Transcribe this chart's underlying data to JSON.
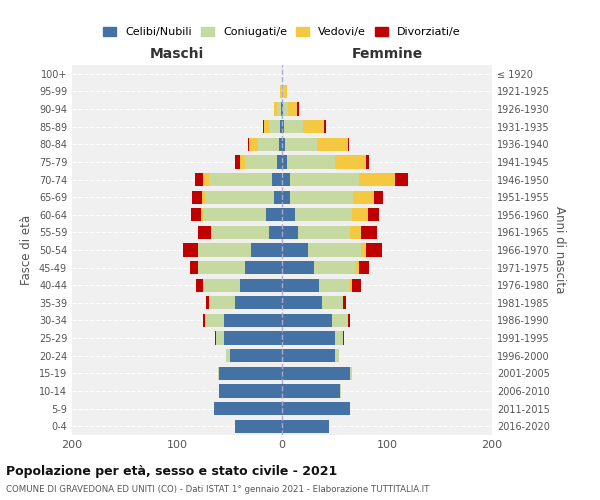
{
  "age_groups": [
    "0-4",
    "5-9",
    "10-14",
    "15-19",
    "20-24",
    "25-29",
    "30-34",
    "35-39",
    "40-44",
    "45-49",
    "50-54",
    "55-59",
    "60-64",
    "65-69",
    "70-74",
    "75-79",
    "80-84",
    "85-89",
    "90-94",
    "95-99",
    "100+"
  ],
  "birth_years": [
    "2016-2020",
    "2011-2015",
    "2006-2010",
    "2001-2005",
    "1996-2000",
    "1991-1995",
    "1986-1990",
    "1981-1985",
    "1976-1980",
    "1971-1975",
    "1966-1970",
    "1961-1965",
    "1956-1960",
    "1951-1955",
    "1946-1950",
    "1941-1945",
    "1936-1940",
    "1931-1935",
    "1926-1930",
    "1921-1925",
    "≤ 1920"
  ],
  "maschi": {
    "celibi": [
      45,
      65,
      60,
      60,
      50,
      55,
      55,
      45,
      40,
      35,
      30,
      12,
      15,
      8,
      10,
      5,
      3,
      2,
      1,
      0,
      0
    ],
    "coniugati": [
      0,
      0,
      0,
      1,
      3,
      8,
      18,
      25,
      35,
      45,
      50,
      55,
      60,
      65,
      60,
      30,
      20,
      10,
      4,
      1,
      0
    ],
    "vedovi": [
      0,
      0,
      0,
      0,
      0,
      0,
      0,
      0,
      0,
      0,
      0,
      1,
      2,
      3,
      5,
      5,
      8,
      5,
      3,
      1,
      0
    ],
    "divorziati": [
      0,
      0,
      0,
      0,
      0,
      1,
      2,
      2,
      7,
      8,
      14,
      12,
      10,
      10,
      8,
      5,
      1,
      1,
      0,
      0,
      0
    ]
  },
  "femmine": {
    "nubili": [
      45,
      65,
      55,
      65,
      50,
      50,
      48,
      38,
      35,
      30,
      25,
      15,
      12,
      8,
      8,
      5,
      3,
      2,
      1,
      0,
      0
    ],
    "coniugate": [
      0,
      0,
      1,
      2,
      4,
      8,
      15,
      20,
      30,
      40,
      50,
      50,
      55,
      60,
      65,
      45,
      30,
      18,
      5,
      2,
      0
    ],
    "vedove": [
      0,
      0,
      0,
      0,
      0,
      0,
      0,
      0,
      2,
      3,
      5,
      10,
      15,
      20,
      35,
      30,
      30,
      20,
      8,
      3,
      0
    ],
    "divorziate": [
      0,
      0,
      0,
      0,
      0,
      1,
      2,
      3,
      8,
      10,
      15,
      15,
      10,
      8,
      12,
      3,
      1,
      2,
      2,
      0,
      0
    ]
  },
  "colors": {
    "celibi": "#4472a4",
    "coniugati": "#c5d9a0",
    "vedovi": "#f5c842",
    "divorziati": "#c00000"
  },
  "xlim": 200,
  "title": "Popolazione per età, sesso e stato civile - 2021",
  "subtitle": "COMUNE DI GRAVEDONA ED UNITI (CO) - Dati ISTAT 1° gennaio 2021 - Elaborazione TUTTITALIA.IT",
  "ylabel_left": "Fasce di età",
  "ylabel_right": "Anni di nascita",
  "xlabel_maschi": "Maschi",
  "xlabel_femmine": "Femmine",
  "legend_labels": [
    "Celibi/Nubili",
    "Coniugati/e",
    "Vedovi/e",
    "Divorziati/e"
  ],
  "background_color": "#ffffff",
  "grid_color": "#cccccc"
}
